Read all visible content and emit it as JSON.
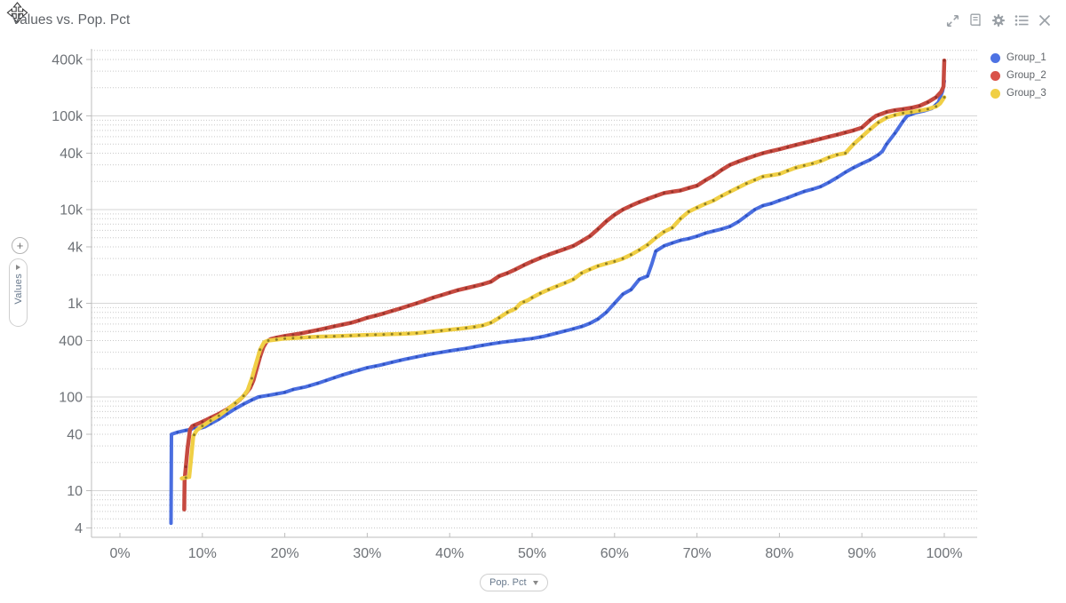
{
  "header": {
    "title": "Values vs. Pop. Pct"
  },
  "toolbar": {
    "icons": [
      "expand-icon",
      "report-icon",
      "settings-gear-icon",
      "list-icon",
      "close-icon"
    ]
  },
  "legend": {
    "items": [
      {
        "label": "Group_1",
        "color": "#4d72e3"
      },
      {
        "label": "Group_2",
        "color": "#d9534a"
      },
      {
        "label": "Group_3",
        "color": "#f0cf45"
      }
    ]
  },
  "axis_controls": {
    "zoom_plus_label": "+",
    "y_selector_label": "Values",
    "x_selector_label": "Pop. Pct"
  },
  "chart_data": {
    "type": "line",
    "title": "Values vs. Pop. Pct",
    "xlabel": "Pop. Pct",
    "ylabel": "Values",
    "x_axis": {
      "unit": "%",
      "min": 0,
      "max": 100,
      "tick_step": 10,
      "tick_labels": [
        "0%",
        "10%",
        "20%",
        "30%",
        "40%",
        "50%",
        "60%",
        "70%",
        "80%",
        "90%",
        "100%"
      ]
    },
    "y_axis": {
      "scale": "log",
      "min": 3.2,
      "max": 520000,
      "tick_labels": [
        "4",
        "10",
        "40",
        "100",
        "400",
        "1k",
        "4k",
        "10k",
        "40k",
        "100k",
        "400k"
      ],
      "tick_values": [
        4,
        10,
        40,
        100,
        400,
        1000,
        4000,
        10000,
        40000,
        100000,
        400000
      ],
      "major_grid_values": [
        10,
        100,
        1000,
        10000,
        100000
      ]
    },
    "grid": {
      "major_color": "#d6d6d6",
      "minor_color": "#c9c9c9",
      "axis_color": "#bdbdbd"
    },
    "series": [
      {
        "name": "Group_1",
        "color": "#4a6ee0",
        "marker_color": "#2a4cb8",
        "width": 4,
        "points": [
          [
            6.2,
            4.5
          ],
          [
            6.25,
            40
          ],
          [
            7,
            42
          ],
          [
            8,
            44
          ],
          [
            8.6,
            45
          ],
          [
            9,
            47
          ],
          [
            9.6,
            46
          ],
          [
            10.3,
            48
          ],
          [
            11,
            52
          ],
          [
            12,
            58
          ],
          [
            13,
            66
          ],
          [
            14,
            75
          ],
          [
            15,
            84
          ],
          [
            16,
            93
          ],
          [
            16.8,
            100
          ],
          [
            18,
            104
          ],
          [
            19,
            108
          ],
          [
            20,
            112
          ],
          [
            21,
            120
          ],
          [
            22.5,
            128
          ],
          [
            24,
            140
          ],
          [
            25.5,
            155
          ],
          [
            27,
            172
          ],
          [
            28.5,
            188
          ],
          [
            30,
            205
          ],
          [
            31.5,
            218
          ],
          [
            33,
            235
          ],
          [
            34.5,
            252
          ],
          [
            36,
            268
          ],
          [
            37.5,
            285
          ],
          [
            39,
            300
          ],
          [
            40.5,
            315
          ],
          [
            42,
            330
          ],
          [
            43.5,
            350
          ],
          [
            45,
            368
          ],
          [
            46.5,
            385
          ],
          [
            48,
            400
          ],
          [
            50,
            420
          ],
          [
            51.5,
            445
          ],
          [
            53,
            480
          ],
          [
            54.5,
            520
          ],
          [
            56,
            565
          ],
          [
            57,
            610
          ],
          [
            58,
            680
          ],
          [
            59,
            800
          ],
          [
            60,
            1000
          ],
          [
            61,
            1250
          ],
          [
            62,
            1400
          ],
          [
            63,
            1800
          ],
          [
            64,
            1950
          ],
          [
            64.5,
            2600
          ],
          [
            65,
            3600
          ],
          [
            66,
            4100
          ],
          [
            67,
            4400
          ],
          [
            68,
            4700
          ],
          [
            69,
            4900
          ],
          [
            70,
            5200
          ],
          [
            71,
            5600
          ],
          [
            72,
            5900
          ],
          [
            73,
            6200
          ],
          [
            74,
            6600
          ],
          [
            75,
            7400
          ],
          [
            76,
            8600
          ],
          [
            77,
            10000
          ],
          [
            78,
            11000
          ],
          [
            79,
            11600
          ],
          [
            80,
            12500
          ],
          [
            81,
            13400
          ],
          [
            82,
            14500
          ],
          [
            83,
            15600
          ],
          [
            84,
            16500
          ],
          [
            85,
            17600
          ],
          [
            86,
            19500
          ],
          [
            87,
            22000
          ],
          [
            88,
            25000
          ],
          [
            89,
            28000
          ],
          [
            90,
            31000
          ],
          [
            91,
            34000
          ],
          [
            92,
            38500
          ],
          [
            92.5,
            42000
          ],
          [
            93,
            50000
          ],
          [
            94,
            65000
          ],
          [
            95,
            88000
          ],
          [
            95.5,
            100000
          ],
          [
            96.5,
            108000
          ],
          [
            97.5,
            113000
          ],
          [
            98.5,
            120000
          ],
          [
            99.3,
            140000
          ],
          [
            99.8,
            185000
          ],
          [
            100,
            235000
          ]
        ]
      },
      {
        "name": "Group_2",
        "color": "#c64a40",
        "marker_color": "#8c2f27",
        "width": 4.5,
        "points": [
          [
            7.8,
            6.3
          ],
          [
            7.85,
            13
          ],
          [
            8,
            18
          ],
          [
            8.2,
            28
          ],
          [
            8.5,
            45
          ],
          [
            8.8,
            49
          ],
          [
            9.5,
            52
          ],
          [
            10.3,
            56
          ],
          [
            11,
            60
          ],
          [
            12,
            66
          ],
          [
            13,
            74
          ],
          [
            14,
            85
          ],
          [
            14.8,
            98
          ],
          [
            15.3,
            110
          ],
          [
            15.8,
            125
          ],
          [
            16.2,
            150
          ],
          [
            16.6,
            200
          ],
          [
            17,
            270
          ],
          [
            17.4,
            340
          ],
          [
            17.8,
            390
          ],
          [
            18.3,
            415
          ],
          [
            19,
            430
          ],
          [
            20,
            448
          ],
          [
            21,
            462
          ],
          [
            22,
            478
          ],
          [
            23,
            498
          ],
          [
            24,
            518
          ],
          [
            25,
            542
          ],
          [
            26,
            568
          ],
          [
            27,
            592
          ],
          [
            28,
            618
          ],
          [
            29,
            655
          ],
          [
            30,
            700
          ],
          [
            31,
            738
          ],
          [
            32,
            780
          ],
          [
            33,
            828
          ],
          [
            34,
            880
          ],
          [
            35,
            938
          ],
          [
            36,
            1000
          ],
          [
            37,
            1070
          ],
          [
            38,
            1150
          ],
          [
            39,
            1220
          ],
          [
            40,
            1300
          ],
          [
            41,
            1380
          ],
          [
            42,
            1450
          ],
          [
            43,
            1520
          ],
          [
            44,
            1600
          ],
          [
            45,
            1700
          ],
          [
            46,
            1950
          ],
          [
            47,
            2100
          ],
          [
            48,
            2300
          ],
          [
            49,
            2550
          ],
          [
            50,
            2800
          ],
          [
            51,
            3050
          ],
          [
            52,
            3300
          ],
          [
            53,
            3550
          ],
          [
            54,
            3800
          ],
          [
            55,
            4100
          ],
          [
            56,
            4600
          ],
          [
            57,
            5200
          ],
          [
            58,
            6200
          ],
          [
            59,
            7500
          ],
          [
            60,
            8800
          ],
          [
            61,
            10000
          ],
          [
            62,
            11000
          ],
          [
            63,
            12000
          ],
          [
            64,
            13000
          ],
          [
            65,
            14000
          ],
          [
            66,
            15000
          ],
          [
            67,
            15500
          ],
          [
            68,
            16000
          ],
          [
            69,
            17000
          ],
          [
            70,
            18000
          ],
          [
            71,
            20500
          ],
          [
            72,
            23000
          ],
          [
            73,
            26500
          ],
          [
            74,
            30000
          ],
          [
            75,
            32500
          ],
          [
            76,
            35000
          ],
          [
            77,
            37500
          ],
          [
            78,
            40000
          ],
          [
            79,
            42000
          ],
          [
            80,
            44000
          ],
          [
            81,
            46500
          ],
          [
            82,
            49000
          ],
          [
            83,
            51500
          ],
          [
            84,
            54000
          ],
          [
            85,
            57000
          ],
          [
            86,
            60000
          ],
          [
            87,
            63000
          ],
          [
            88,
            66500
          ],
          [
            89,
            70000
          ],
          [
            90,
            75000
          ],
          [
            91,
            90000
          ],
          [
            91.7,
            100000
          ],
          [
            93,
            110000
          ],
          [
            94,
            115000
          ],
          [
            95,
            118000
          ],
          [
            96,
            122000
          ],
          [
            97,
            128000
          ],
          [
            98,
            140000
          ],
          [
            99,
            158000
          ],
          [
            99.6,
            180000
          ],
          [
            99.9,
            205000
          ],
          [
            100,
            390000
          ]
        ]
      },
      {
        "name": "Group_3",
        "color": "#f0cf45",
        "marker_color": "#7d7120",
        "width": 4.5,
        "points": [
          [
            7.5,
            13.5
          ],
          [
            8.4,
            14
          ],
          [
            8.7,
            25
          ],
          [
            8.9,
            38
          ],
          [
            9.3,
            44
          ],
          [
            10,
            49
          ],
          [
            11,
            56
          ],
          [
            12,
            63
          ],
          [
            13,
            73
          ],
          [
            14,
            86
          ],
          [
            14.9,
            100
          ],
          [
            15.5,
            118
          ],
          [
            16,
            158
          ],
          [
            16.5,
            225
          ],
          [
            17,
            320
          ],
          [
            17.5,
            385
          ],
          [
            18,
            400
          ],
          [
            19,
            410
          ],
          [
            20,
            420
          ],
          [
            21,
            425
          ],
          [
            22,
            430
          ],
          [
            23,
            435
          ],
          [
            24,
            440
          ],
          [
            25,
            442
          ],
          [
            26,
            445
          ],
          [
            27,
            448
          ],
          [
            28,
            452
          ],
          [
            29,
            456
          ],
          [
            30,
            460
          ],
          [
            31,
            462
          ],
          [
            32,
            465
          ],
          [
            33,
            468
          ],
          [
            34,
            471
          ],
          [
            35,
            475
          ],
          [
            36,
            480
          ],
          [
            37,
            490
          ],
          [
            38,
            500
          ],
          [
            39,
            510
          ],
          [
            40,
            522
          ],
          [
            41,
            532
          ],
          [
            42,
            545
          ],
          [
            43,
            560
          ],
          [
            44,
            580
          ],
          [
            45,
            620
          ],
          [
            46,
            700
          ],
          [
            47,
            800
          ],
          [
            48,
            880
          ],
          [
            48.6,
            1000
          ],
          [
            49.5,
            1080
          ],
          [
            50,
            1150
          ],
          [
            51,
            1280
          ],
          [
            52,
            1400
          ],
          [
            53,
            1520
          ],
          [
            54,
            1650
          ],
          [
            55,
            1800
          ],
          [
            56,
            2100
          ],
          [
            57,
            2300
          ],
          [
            58,
            2500
          ],
          [
            59,
            2650
          ],
          [
            60,
            2800
          ],
          [
            61,
            3000
          ],
          [
            62,
            3300
          ],
          [
            63,
            3700
          ],
          [
            64,
            4200
          ],
          [
            65,
            5000
          ],
          [
            66,
            5800
          ],
          [
            67,
            6400
          ],
          [
            68,
            8000
          ],
          [
            69,
            9500
          ],
          [
            69.5,
            10000
          ],
          [
            70,
            10500
          ],
          [
            71,
            11500
          ],
          [
            72,
            12500
          ],
          [
            73,
            14000
          ],
          [
            74,
            15500
          ],
          [
            75,
            17200
          ],
          [
            76,
            19000
          ],
          [
            77,
            20700
          ],
          [
            78,
            22500
          ],
          [
            79,
            23200
          ],
          [
            80,
            24000
          ],
          [
            81,
            26000
          ],
          [
            82,
            28000
          ],
          [
            83,
            29500
          ],
          [
            84,
            31000
          ],
          [
            85,
            33000
          ],
          [
            86,
            36000
          ],
          [
            87,
            38500
          ],
          [
            88,
            40000
          ],
          [
            89,
            50000
          ],
          [
            90,
            60000
          ],
          [
            91,
            72000
          ],
          [
            92,
            85000
          ],
          [
            93,
            96000
          ],
          [
            94,
            102000
          ],
          [
            95,
            107000
          ],
          [
            96,
            110000
          ],
          [
            97,
            114000
          ],
          [
            98,
            118000
          ],
          [
            99,
            126000
          ],
          [
            99.5,
            136000
          ],
          [
            100,
            158000
          ]
        ]
      }
    ]
  }
}
